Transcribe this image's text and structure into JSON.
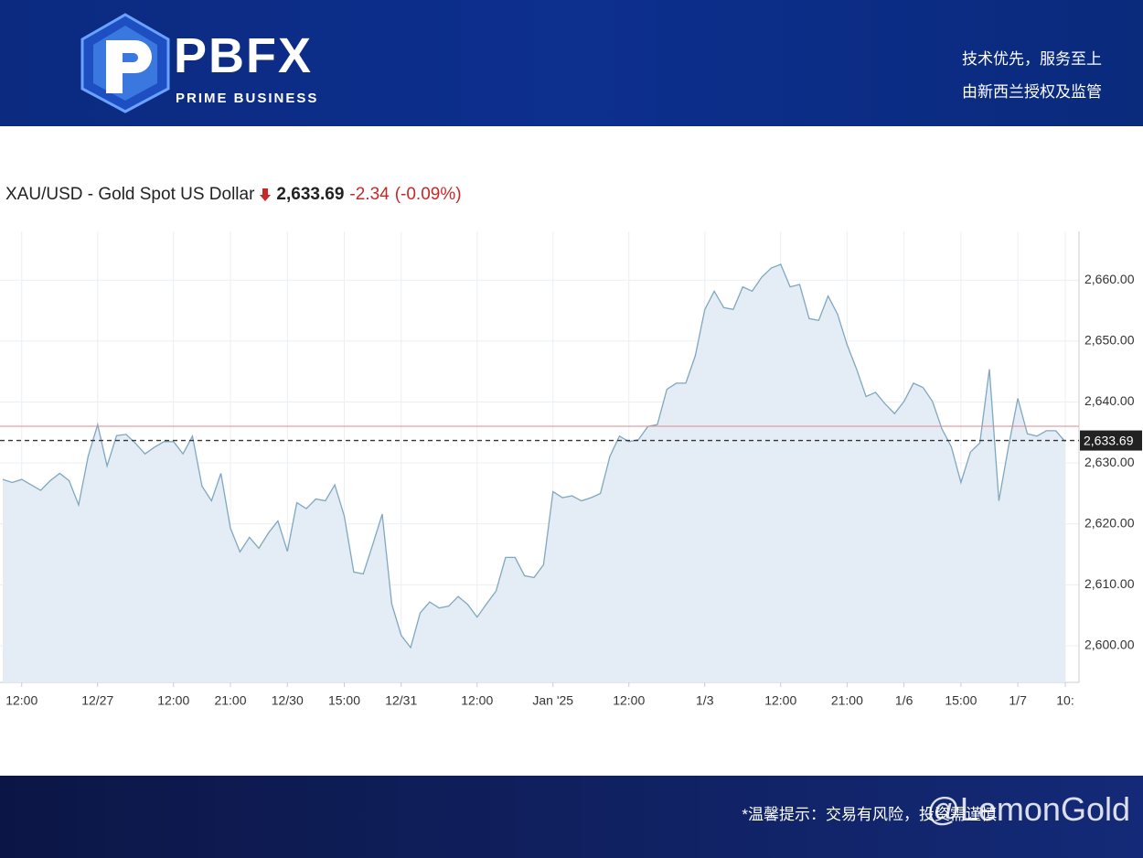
{
  "banner": {
    "brand": "PBFX",
    "tagline": "PRIME BUSINESS",
    "slogan": "技术优先，服务至上",
    "regulation": "由新西兰授权及监管"
  },
  "quote": {
    "symbol": "XAU/USD - Gold Spot US Dollar",
    "price": {
      "value": 2633.69,
      "label": "2,633.69"
    },
    "change": -2.34,
    "change_percent": "(-0.09%)"
  },
  "footer": {
    "notice": "*温馨提示：交易有风险，投资需谨慎",
    "watermark": "@LemonGold"
  },
  "chart_data": {
    "type": "area",
    "color": "#7fa7c0",
    "fill": "#e4edf5",
    "grid": true,
    "reference_line": {
      "value": 2636.03,
      "color": "#e08a8a"
    },
    "categories": [
      null,
      null,
      "12:00",
      null,
      null,
      null,
      null,
      null,
      null,
      null,
      "12/27",
      null,
      null,
      null,
      null,
      null,
      null,
      null,
      "12:00",
      null,
      null,
      null,
      null,
      null,
      "21:00",
      null,
      null,
      null,
      null,
      null,
      "12/30",
      null,
      null,
      null,
      null,
      null,
      "15:00",
      null,
      null,
      null,
      null,
      null,
      "12/31",
      null,
      null,
      null,
      null,
      null,
      null,
      null,
      "12:00",
      null,
      null,
      null,
      null,
      null,
      null,
      null,
      "Jan '25",
      null,
      null,
      null,
      null,
      null,
      null,
      null,
      "12:00",
      null,
      null,
      null,
      null,
      null,
      null,
      null,
      "1/3",
      null,
      null,
      null,
      null,
      null,
      null,
      null,
      "12:00",
      null,
      null,
      null,
      null,
      null,
      null,
      "21:00",
      null,
      null,
      null,
      null,
      null,
      "1/6",
      null,
      null,
      null,
      null,
      null,
      "15:00",
      null,
      null,
      null,
      null,
      null,
      "1/7",
      null,
      null,
      null,
      null,
      "10:"
    ],
    "values": [
      2627.3,
      2626.8,
      2627.3,
      2626.4,
      2625.5,
      2627.1,
      2628.3,
      2627.1,
      2623.1,
      2631.1,
      2636.3,
      2629.5,
      2634.5,
      2634.7,
      2633.2,
      2631.5,
      2632.6,
      2633.5,
      2633.5,
      2631.5,
      2634.4,
      2626.2,
      2623.8,
      2628.3,
      2619.3,
      2615.4,
      2617.8,
      2616.0,
      2618.5,
      2620.5,
      2615.5,
      2623.5,
      2622.5,
      2624.1,
      2623.8,
      2626.4,
      2621.3,
      2612.1,
      2611.8,
      2616.6,
      2621.6,
      2606.9,
      2601.7,
      2599.7,
      2605.4,
      2607.2,
      2606.2,
      2606.5,
      2608.1,
      2606.8,
      2604.7,
      2606.9,
      2609.0,
      2614.5,
      2614.5,
      2611.5,
      2611.2,
      2613.3,
      2625.3,
      2624.3,
      2624.6,
      2623.8,
      2624.3,
      2625.0,
      2631.1,
      2634.4,
      2633.5,
      2633.8,
      2636.0,
      2636.3,
      2642.1,
      2643.1,
      2643.1,
      2647.6,
      2655.2,
      2658.2,
      2655.5,
      2655.2,
      2658.9,
      2658.2,
      2660.5,
      2662.0,
      2662.6,
      2658.9,
      2659.3,
      2653.7,
      2653.4,
      2657.4,
      2654.4,
      2649.4,
      2645.4,
      2640.9,
      2641.6,
      2639.7,
      2638.1,
      2640.1,
      2643.1,
      2642.4,
      2640.1,
      2635.6,
      2632.6,
      2626.8,
      2631.8,
      2633.3,
      2645.4,
      2623.8,
      2632.6,
      2640.6,
      2634.8,
      2634.4,
      2635.3,
      2635.3,
      2633.5
    ],
    "ylim": [
      2594,
      2668
    ],
    "yticks": [
      {
        "value": 2600,
        "label": "2,600.00"
      },
      {
        "value": 2610,
        "label": "2,610.00"
      },
      {
        "value": 2620,
        "label": "2,620.00"
      },
      {
        "value": 2630,
        "label": "2,630.00"
      },
      {
        "value": 2640,
        "label": "2,640.00"
      },
      {
        "value": 2650,
        "label": "2,650.00"
      },
      {
        "value": 2660,
        "label": "2,660.00"
      }
    ]
  }
}
